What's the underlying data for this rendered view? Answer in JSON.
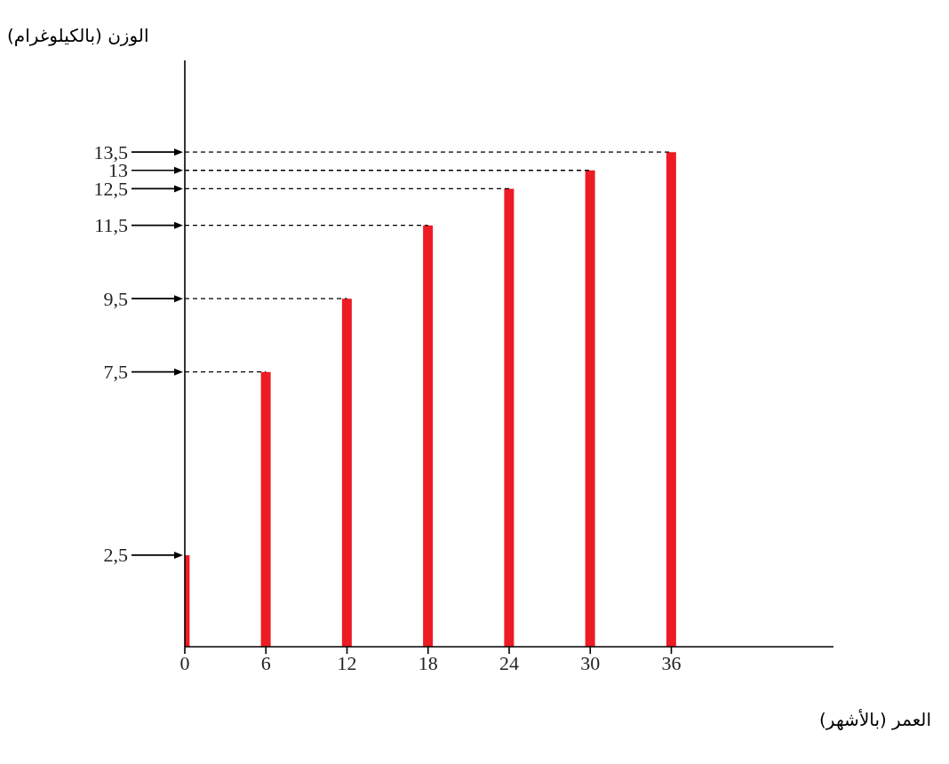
{
  "chart_data": {
    "type": "bar",
    "xlabel": "العمر (بالأشهر)",
    "ylabel": "الوزن (بالكيلوغرام)",
    "x": [
      0,
      6,
      12,
      18,
      24,
      30,
      36
    ],
    "values": [
      2.5,
      7.5,
      9.5,
      11.5,
      12.5,
      13,
      13.5
    ],
    "color": "#ed1c24",
    "xlim": [
      0,
      48
    ],
    "xticks": [
      0,
      6,
      12,
      18,
      24,
      30,
      36
    ],
    "ylim": [
      0,
      16
    ],
    "yticks": [
      {
        "value": 2.5,
        "label": "2,5"
      },
      {
        "value": 7.5,
        "label": "7,5"
      },
      {
        "value": 9.5,
        "label": "9,5"
      },
      {
        "value": 11.5,
        "label": "11,5"
      },
      {
        "value": 12.5,
        "label": "12,5"
      },
      {
        "value": 13,
        "label": "13"
      },
      {
        "value": 13.5,
        "label": "13,5"
      }
    ],
    "ref_lines": [
      {
        "axis": "y",
        "value": 7.5,
        "line_style": "dashed"
      },
      {
        "axis": "y",
        "value": 9.5,
        "line_style": "dashed"
      },
      {
        "axis": "y",
        "value": 11.5,
        "line_style": "dashed"
      },
      {
        "axis": "y",
        "value": 12.5,
        "line_style": "dashed"
      },
      {
        "axis": "y",
        "value": 13,
        "line_style": "dashed"
      },
      {
        "axis": "y",
        "value": 13.5,
        "line_style": "dashed"
      }
    ],
    "grid": false
  }
}
